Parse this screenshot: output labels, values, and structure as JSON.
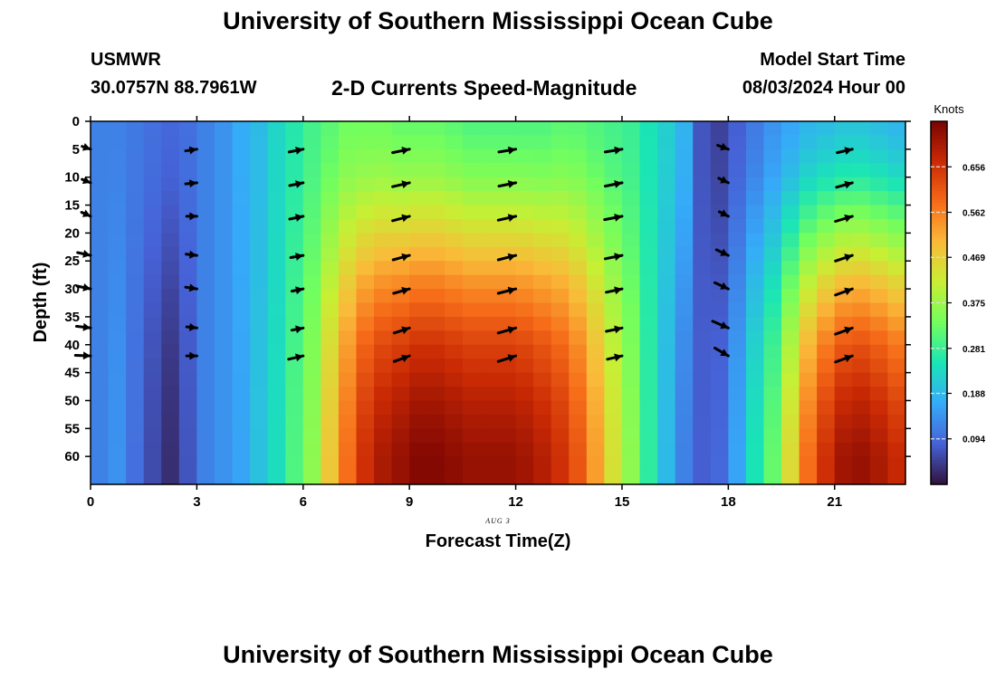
{
  "page": {
    "title": "University of Southern Mississippi Ocean Cube",
    "footer_title": "University of Southern Mississippi Ocean Cube",
    "station": "USMWR",
    "coords": "30.0757N  88.7961W",
    "subtitle": "2-D Currents Speed-Magnitude",
    "start_label": "Model Start Time",
    "start_value": "08/03/2024 Hour 00"
  },
  "chart_data": {
    "type": "heatmap",
    "title": "2-D Currents Speed-Magnitude",
    "xlabel": "Forecast Time(Z)",
    "ylabel": "Depth (ft)",
    "date_label": "AUG 3",
    "xlim": [
      0,
      23
    ],
    "ylim": [
      0,
      65
    ],
    "y_inverted": true,
    "x_ticks": [
      0,
      3,
      6,
      9,
      12,
      15,
      18,
      21
    ],
    "y_ticks": [
      0,
      5,
      10,
      15,
      20,
      25,
      30,
      35,
      40,
      45,
      50,
      55,
      60
    ],
    "colorbar": {
      "label": "Knots",
      "range": [
        0,
        0.75
      ],
      "ticks": [
        "0.094",
        "0.188",
        "0.281",
        "0.375",
        "0.469",
        "0.562",
        "0.656"
      ],
      "colormap": [
        "#30123b",
        "#4662d7",
        "#36aaf9",
        "#1ae4b6",
        "#72fe5e",
        "#c7ef34",
        "#faba39",
        "#f66b19",
        "#ca2a04",
        "#7a0403"
      ]
    },
    "hours": [
      0,
      0.5,
      1,
      1.5,
      2,
      2.5,
      3,
      3.5,
      4,
      4.5,
      5,
      5.5,
      6,
      6.5,
      7,
      7.5,
      8,
      8.5,
      9,
      9.5,
      10,
      10.5,
      11,
      11.5,
      12,
      12.5,
      13,
      13.5,
      14,
      14.5,
      15,
      15.5,
      16,
      16.5,
      17,
      17.5,
      18,
      18.5,
      19,
      19.5,
      20,
      20.5,
      21,
      21.5,
      22,
      22.5
    ],
    "surface_speed": [
      0.12,
      0.12,
      0.11,
      0.1,
      0.09,
      0.1,
      0.12,
      0.14,
      0.17,
      0.19,
      0.23,
      0.26,
      0.29,
      0.31,
      0.33,
      0.33,
      0.33,
      0.32,
      0.32,
      0.32,
      0.31,
      0.3,
      0.3,
      0.3,
      0.3,
      0.3,
      0.31,
      0.31,
      0.3,
      0.29,
      0.28,
      0.25,
      0.22,
      0.18,
      0.07,
      0.05,
      0.08,
      0.11,
      0.14,
      0.16,
      0.18,
      0.19,
      0.2,
      0.2,
      0.19,
      0.18
    ],
    "bottom_speed": [
      0.12,
      0.14,
      0.1,
      0.06,
      0.03,
      0.07,
      0.12,
      0.14,
      0.16,
      0.2,
      0.24,
      0.3,
      0.36,
      0.48,
      0.58,
      0.66,
      0.7,
      0.72,
      0.74,
      0.74,
      0.73,
      0.72,
      0.72,
      0.72,
      0.71,
      0.69,
      0.66,
      0.61,
      0.53,
      0.44,
      0.36,
      0.27,
      0.19,
      0.12,
      0.08,
      0.09,
      0.16,
      0.25,
      0.32,
      0.45,
      0.58,
      0.66,
      0.71,
      0.72,
      0.7,
      0.67
    ],
    "depth_profile": [
      {
        "depth": 0,
        "factor": 0
      },
      {
        "depth": 5,
        "factor": 0.05
      },
      {
        "depth": 10,
        "factor": 0.12
      },
      {
        "depth": 20,
        "factor": 0.35
      },
      {
        "depth": 30,
        "factor": 0.6
      },
      {
        "depth": 40,
        "factor": 0.8
      },
      {
        "depth": 50,
        "factor": 0.92
      },
      {
        "depth": 60,
        "factor": 1.0
      },
      {
        "depth": 65,
        "factor": 1.0
      }
    ],
    "vector_depths": [
      5,
      11,
      17,
      24,
      30,
      37,
      42
    ],
    "vectors": [
      {
        "hour": 0,
        "arrows": [
          [
            15,
            5
          ],
          [
            15,
            6
          ],
          [
            16,
            7
          ],
          [
            23,
            5
          ],
          [
            24,
            5
          ],
          [
            25,
            3
          ],
          [
            27,
            1
          ]
        ]
      },
      {
        "hour": 3,
        "arrows": [
          [
            20,
            -3
          ],
          [
            20,
            -2
          ],
          [
            18,
            0
          ],
          [
            19,
            2
          ],
          [
            20,
            3
          ],
          [
            18,
            2
          ],
          [
            18,
            0
          ]
        ]
      },
      {
        "hour": 6,
        "arrows": [
          [
            25,
            -5
          ],
          [
            24,
            -5
          ],
          [
            24,
            -5
          ],
          [
            22,
            -4
          ],
          [
            20,
            -4
          ],
          [
            20,
            -4
          ],
          [
            26,
            -6
          ]
        ]
      },
      {
        "hour": 9,
        "arrows": [
          [
            30,
            -6
          ],
          [
            30,
            -7
          ],
          [
            30,
            -8
          ],
          [
            29,
            -8
          ],
          [
            28,
            -8
          ],
          [
            27,
            -9
          ],
          [
            27,
            -10
          ]
        ]
      },
      {
        "hour": 12,
        "arrows": [
          [
            30,
            -5
          ],
          [
            30,
            -6
          ],
          [
            31,
            -7
          ],
          [
            31,
            -8
          ],
          [
            31,
            -8
          ],
          [
            31,
            -9
          ],
          [
            31,
            -10
          ]
        ]
      },
      {
        "hour": 15,
        "arrows": [
          [
            30,
            -5
          ],
          [
            30,
            -6
          ],
          [
            31,
            -6
          ],
          [
            30,
            -6
          ],
          [
            28,
            -6
          ],
          [
            28,
            -6
          ],
          [
            26,
            -6
          ]
        ]
      },
      {
        "hour": 18,
        "arrows": [
          [
            19,
            7
          ],
          [
            17,
            8
          ],
          [
            16,
            8
          ],
          [
            21,
            10
          ],
          [
            24,
            11
          ],
          [
            28,
            12
          ],
          [
            24,
            14
          ]
        ]
      },
      {
        "hour": 21.5,
        "arrows": [
          [
            27,
            -6
          ],
          [
            28,
            -8
          ],
          [
            30,
            -9
          ],
          [
            30,
            -10
          ],
          [
            30,
            -11
          ],
          [
            30,
            -11
          ],
          [
            30,
            -11
          ]
        ]
      }
    ],
    "arrow_scale_px_per_knot": 62,
    "arrow_anchor": "head at column, tail to the left, dx in 0.01-knot units",
    "grid": false
  }
}
